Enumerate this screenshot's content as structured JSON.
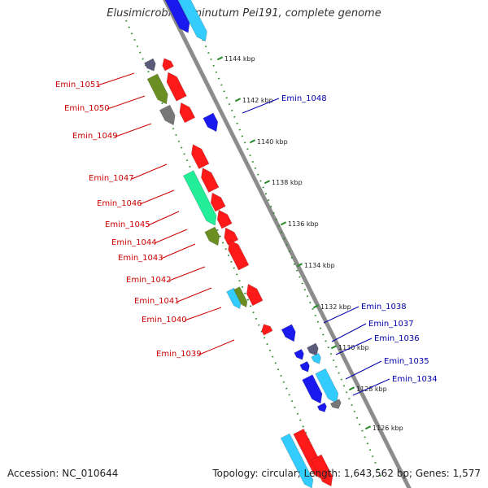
{
  "title": "Elusimicrobium minutum Pei191, complete genome",
  "footer": {
    "accession": "Accession: NC_010644",
    "stats": "Topology: circular; Length: 1,643,562 bp; Genes: 1,577"
  },
  "colors": {
    "backbone": "#8c8c8c",
    "scale_ticks": "#2a8a2a",
    "label_reverse": "#cc0000",
    "label_forward": "#0000aa",
    "gene_red": "#ff1a1a",
    "gene_blue": "#1a1aee",
    "gene_cyan": "#33ccff",
    "gene_green": "#22ee99",
    "gene_olive": "#6b8e23",
    "gene_slate": "#5a5a7a",
    "gene_gray": "#777777"
  },
  "scale_labels": [
    "1144 kbp",
    "1142 kbp",
    "1140 kbp",
    "1138 kbp",
    "1136 kbp",
    "1134 kbp",
    "1132 kbp",
    "1130 kbp",
    "1128 kbp",
    "1126 kbp"
  ],
  "labels_left": [
    "Emin_1051",
    "Emin_1050",
    "Emin_1049",
    "Emin_1047",
    "Emin_1046",
    "Emin_1045",
    "Emin_1044",
    "Emin_1043",
    "Emin_1042",
    "Emin_1041",
    "Emin_1040",
    "Emin_1039"
  ],
  "labels_right": [
    "Emin_1048",
    "Emin_1038",
    "Emin_1037",
    "Emin_1036",
    "Emin_1035",
    "Emin_1034"
  ]
}
